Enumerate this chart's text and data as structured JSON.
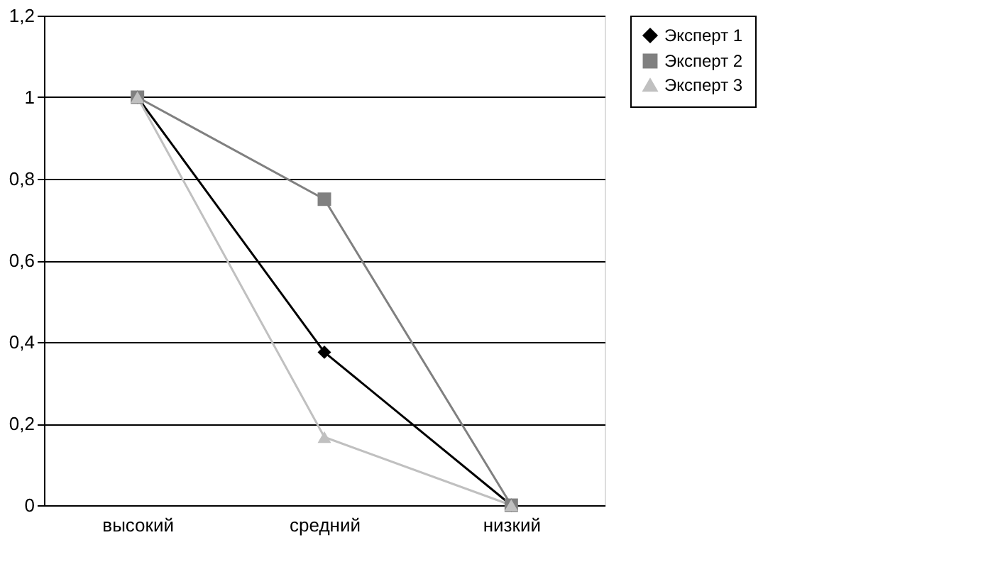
{
  "chart_data": {
    "type": "line",
    "categories": [
      "высокий",
      "средний",
      "низкий"
    ],
    "series": [
      {
        "name": "Эксперт 1",
        "color": "#000000",
        "marker": "diamond",
        "values": [
          1,
          0.375,
          0
        ]
      },
      {
        "name": "Эксперт 2",
        "color": "#808080",
        "marker": "square",
        "values": [
          1,
          0.75,
          0
        ]
      },
      {
        "name": "Эксперт 3",
        "color": "#c0c0c0",
        "marker": "triangle",
        "values": [
          1,
          0.167,
          0
        ]
      }
    ],
    "ylim": [
      0,
      1.2
    ],
    "yticks": [
      0,
      {
        "value": 0.2,
        "label": "0,2"
      },
      {
        "value": 0.4,
        "label": "0,4"
      },
      {
        "value": 0.6,
        "label": "0,6"
      },
      {
        "value": 0.8,
        "label": "0,8"
      },
      1,
      {
        "value": 1.2,
        "label": "1,2"
      }
    ],
    "grid": "y",
    "legend": "right",
    "line_style": "solid"
  }
}
